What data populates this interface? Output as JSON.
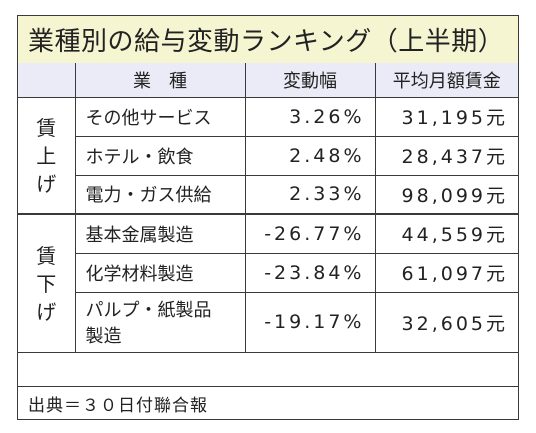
{
  "title": "業種別の給与変動ランキング（上半期）",
  "headers": {
    "industry": "業　種",
    "change": "変動幅",
    "salary": "平均月額賃金"
  },
  "groups": [
    {
      "label": [
        "賃",
        "上",
        "げ"
      ],
      "rows": [
        {
          "industry": "その他サービス",
          "change": "3.26%",
          "salary": "31,195元"
        },
        {
          "industry": "ホテル・飲食",
          "change": "2.48%",
          "salary": "28,437元"
        },
        {
          "industry": "電力・ガス供給",
          "change": "2.33%",
          "salary": "98,099元"
        }
      ]
    },
    {
      "label": [
        "賃",
        "下",
        "げ"
      ],
      "rows": [
        {
          "industry": "基本金属製造",
          "change": "-26.77%",
          "salary": "44,559元"
        },
        {
          "industry": "化学材料製造",
          "change": "-23.84%",
          "salary": "61,097元"
        },
        {
          "industry": [
            "パルプ・紙製品",
            "製造"
          ],
          "change": "-19.17%",
          "salary": "32,605元"
        }
      ]
    }
  ],
  "source": "出典＝３０日付聯合報"
}
